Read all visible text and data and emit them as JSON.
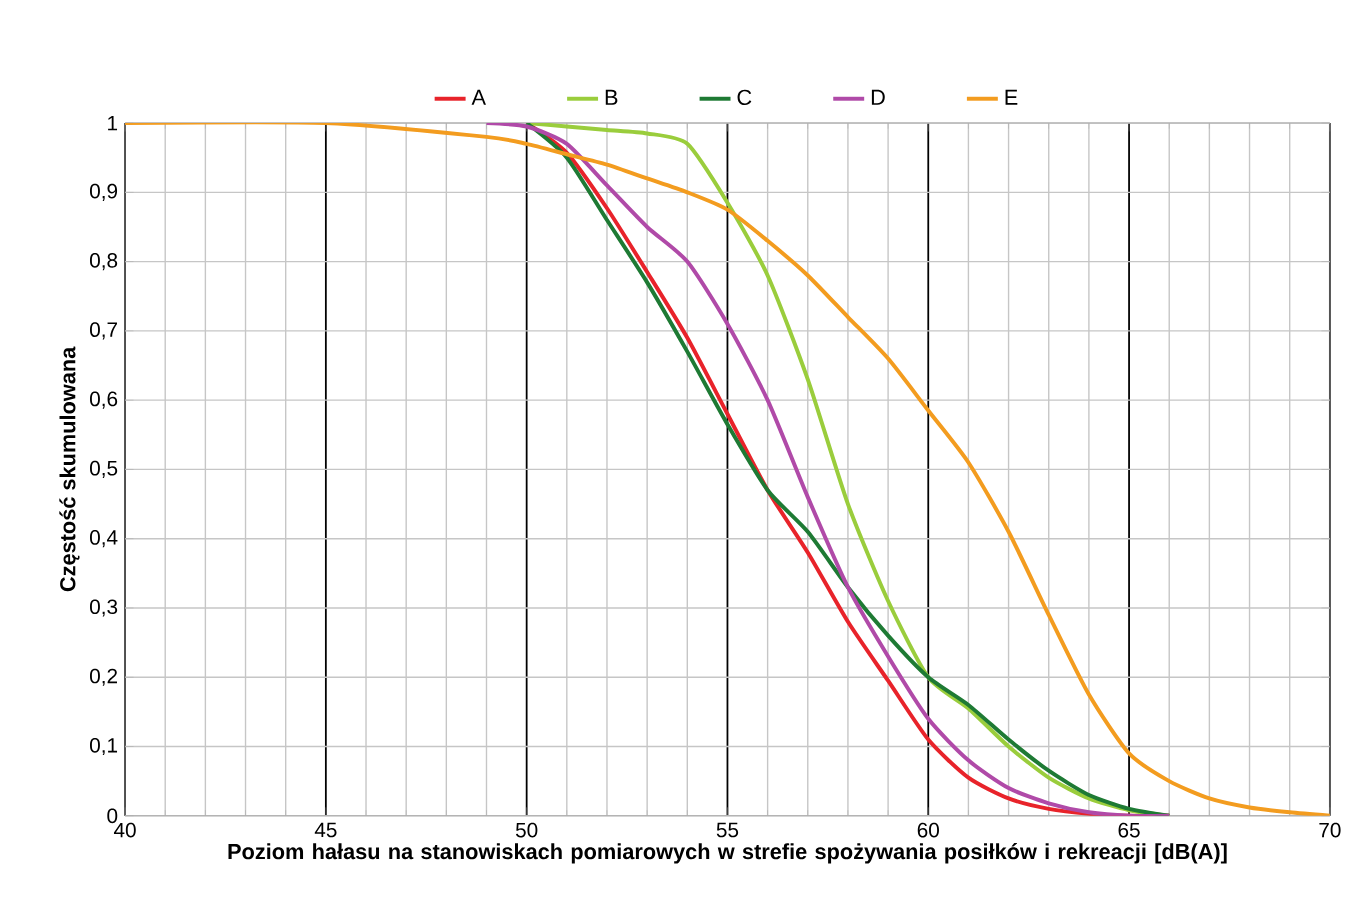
{
  "chart_data": {
    "type": "line",
    "xlabel": "Poziom hałasu na stanowiskach pomiarowych w strefie spożywania posiłków i rekreacji [dB(A)]",
    "ylabel": "Częstość skumulowana",
    "xlim": [
      40,
      70
    ],
    "ylim": [
      0,
      1
    ],
    "xticks": [
      40,
      45,
      50,
      55,
      60,
      65,
      70
    ],
    "yticks": [
      0,
      {
        "value": 0.1,
        "label": "0,1"
      },
      {
        "value": 0.2,
        "label": "0,2"
      },
      {
        "value": 0.3,
        "label": "0,3"
      },
      {
        "value": 0.4,
        "label": "0,4"
      },
      {
        "value": 0.5,
        "label": "0,5"
      },
      {
        "value": 0.6,
        "label": "0,6"
      },
      {
        "value": 0.7,
        "label": "0,7"
      },
      {
        "value": 0.8,
        "label": "0,8"
      },
      {
        "value": 0.9,
        "label": "0,9"
      },
      1
    ],
    "grid": true,
    "legend": "top",
    "marker": "none",
    "line_style": "solid",
    "x": [
      40,
      45,
      49,
      50,
      51,
      52,
      53,
      54,
      55,
      56,
      57,
      58,
      59,
      60,
      61,
      62,
      63,
      64,
      65,
      66,
      67,
      68,
      69,
      70
    ],
    "series": [
      {
        "name": "A",
        "color": "#e8232a",
        "values": [
          null,
          null,
          null,
          1,
          0.957,
          0.877,
          0.785,
          0.69,
          0.58,
          0.47,
          0.38,
          0.28,
          0.195,
          0.11,
          0.055,
          0.025,
          0.01,
          0.003,
          0,
          0,
          null,
          null,
          null,
          null
        ]
      },
      {
        "name": "B",
        "color": "#9acd3c",
        "values": [
          null,
          null,
          null,
          1,
          0.995,
          0.99,
          0.985,
          0.97,
          0.885,
          0.78,
          0.63,
          0.45,
          0.31,
          0.2,
          0.155,
          0.1,
          0.055,
          0.025,
          0.008,
          0,
          null,
          null,
          null,
          null
        ]
      },
      {
        "name": "C",
        "color": "#1e7a34",
        "values": [
          null,
          null,
          null,
          1,
          0.95,
          0.86,
          0.77,
          0.67,
          0.565,
          0.47,
          0.41,
          0.33,
          0.26,
          0.2,
          0.16,
          0.11,
          0.065,
          0.03,
          0.01,
          0,
          null,
          null,
          null,
          null
        ]
      },
      {
        "name": "D",
        "color": "#b04aa8",
        "values": [
          null,
          null,
          1,
          0.995,
          0.97,
          0.91,
          0.85,
          0.8,
          0.71,
          0.6,
          0.46,
          0.33,
          0.23,
          0.14,
          0.08,
          0.04,
          0.018,
          0.005,
          0,
          0,
          null,
          null,
          null,
          null
        ]
      },
      {
        "name": "E",
        "color": "#f39c1f",
        "values": [
          1,
          1,
          0.98,
          0.97,
          0.955,
          0.94,
          0.92,
          0.9,
          0.875,
          0.83,
          0.78,
          0.72,
          0.66,
          0.585,
          0.51,
          0.41,
          0.29,
          0.175,
          0.09,
          0.05,
          0.025,
          0.012,
          0.005,
          0
        ]
      }
    ]
  }
}
